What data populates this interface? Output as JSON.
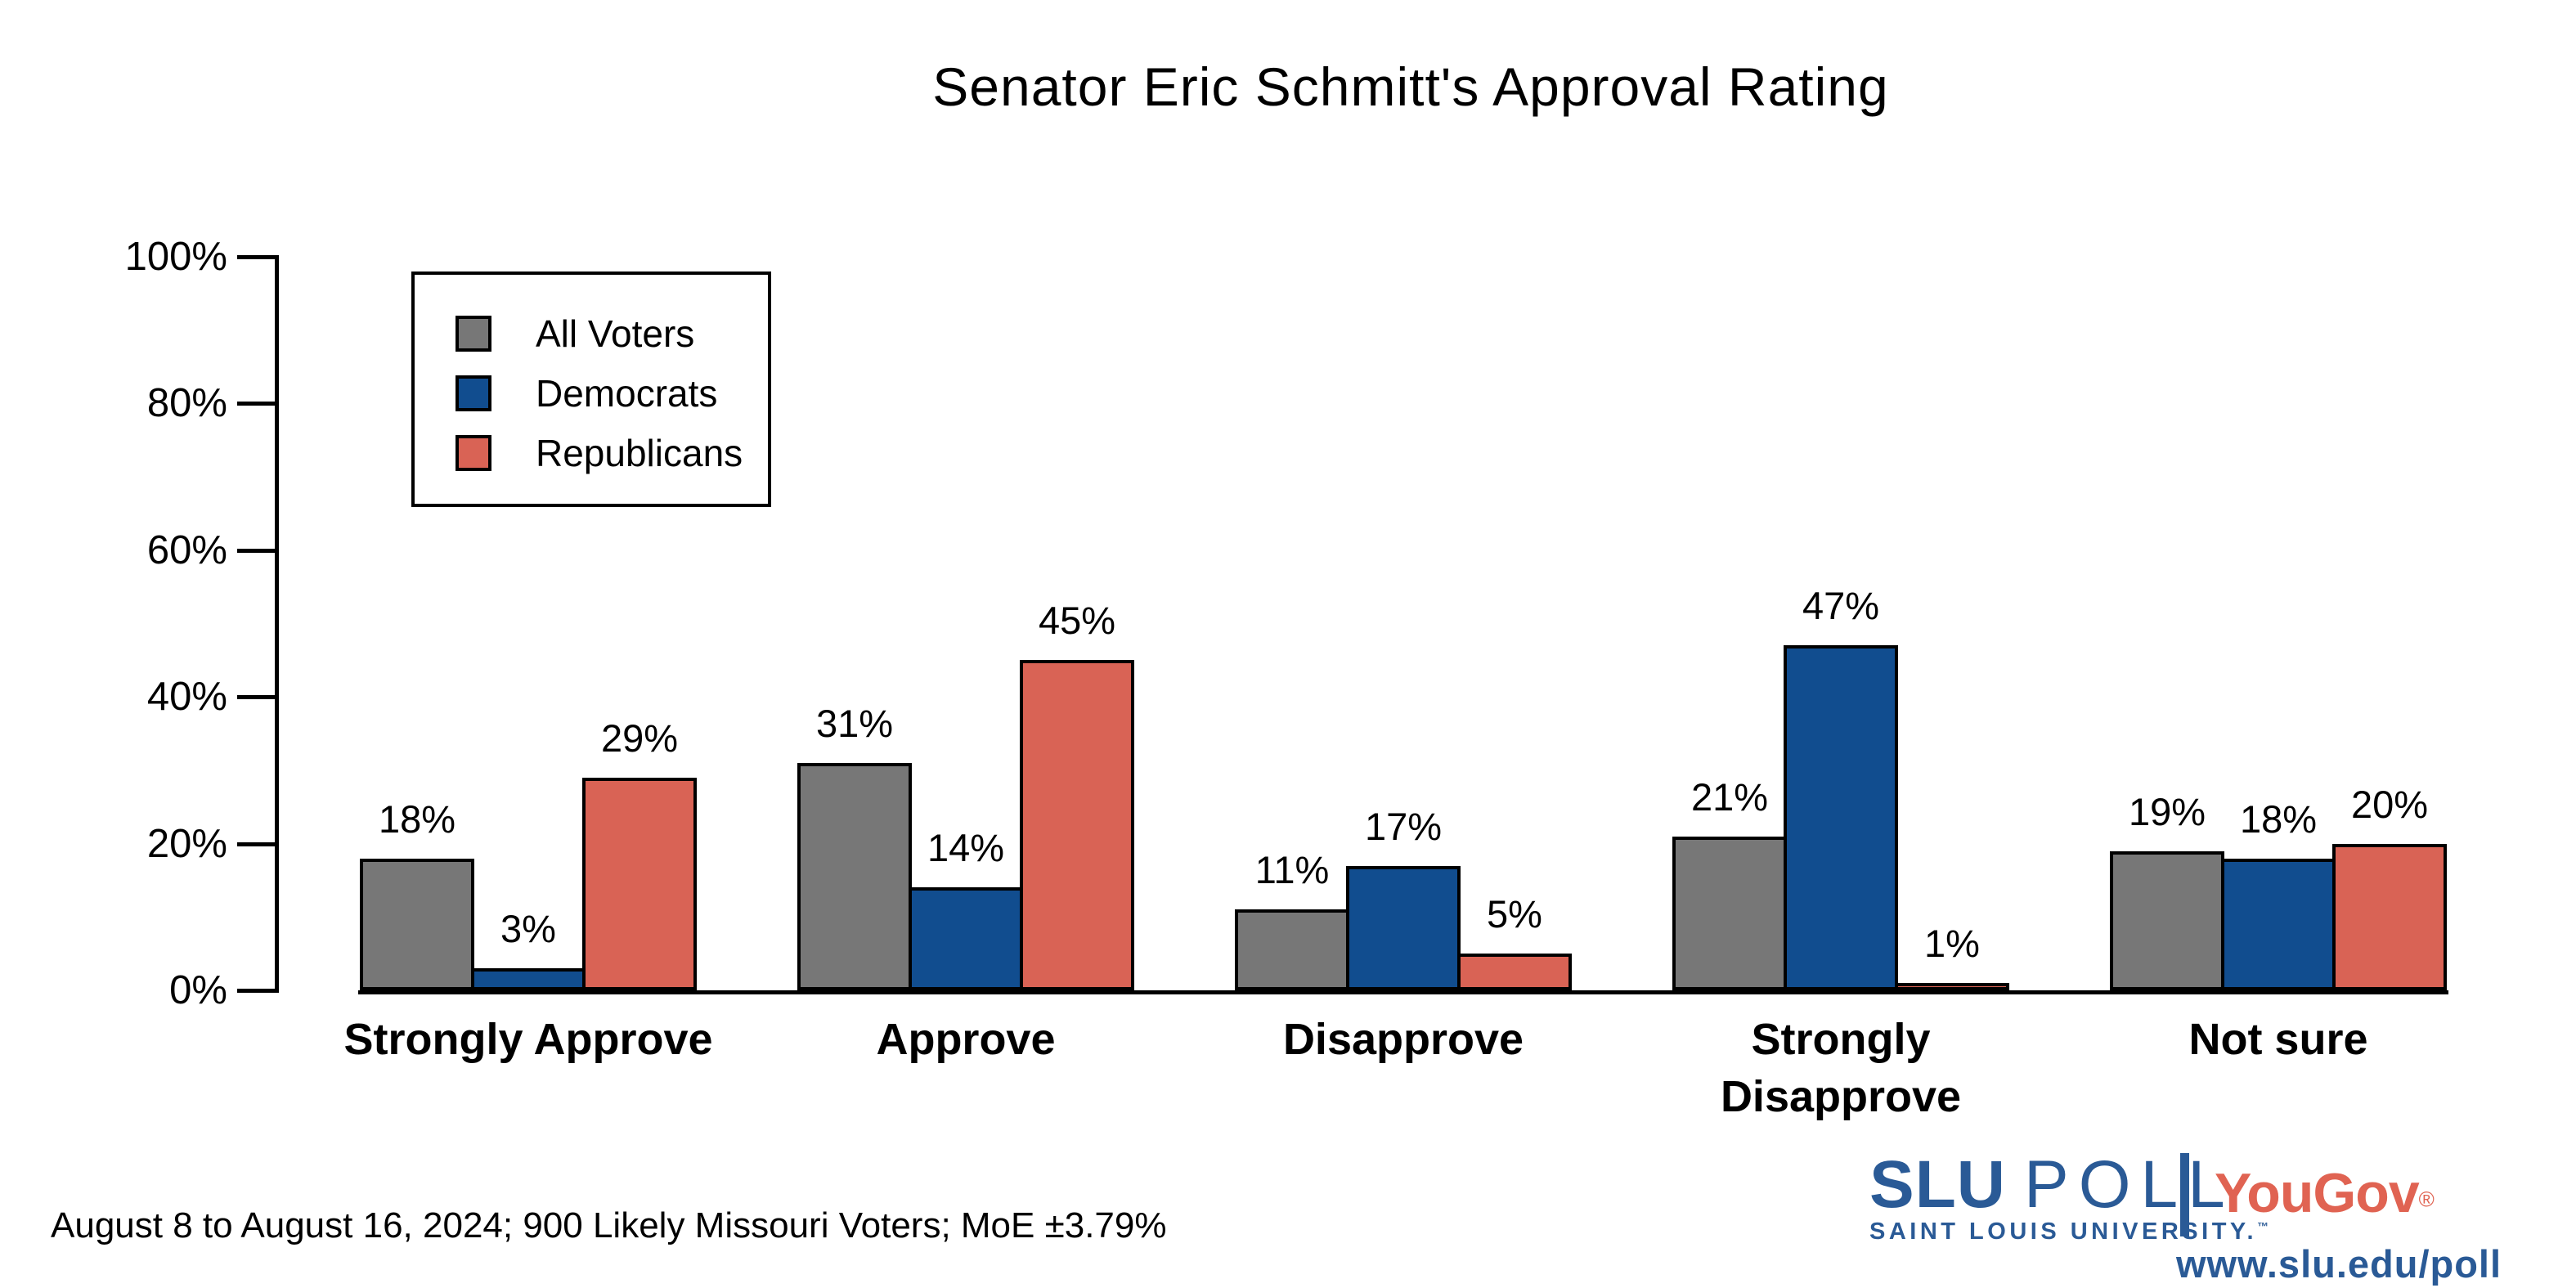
{
  "chart_data": {
    "type": "bar",
    "title": "Senator Eric Schmitt's Approval Rating",
    "categories": [
      "Strongly Approve",
      "Approve",
      "Disapprove",
      "Strongly Disapprove",
      "Not sure"
    ],
    "series": [
      {
        "name": "All Voters",
        "color": "#777777",
        "values": [
          18,
          31,
          11,
          21,
          19
        ]
      },
      {
        "name": "Democrats",
        "color": "#114D8F",
        "values": [
          3,
          14,
          17,
          47,
          18
        ]
      },
      {
        "name": "Republicans",
        "color": "#D96355",
        "values": [
          29,
          45,
          5,
          1,
          20
        ]
      }
    ],
    "value_labels": [
      [
        "18%",
        "31%",
        "11%",
        "21%",
        "19%"
      ],
      [
        "3%",
        "14%",
        "17%",
        "47%",
        "18%"
      ],
      [
        "29%",
        "45%",
        "5%",
        "1%",
        "20%"
      ]
    ],
    "xlabel": "",
    "ylabel": "",
    "ylim": [
      0,
      100
    ],
    "yticks": [
      0,
      20,
      40,
      60,
      80,
      100
    ],
    "ytick_labels": [
      "0%",
      "20%",
      "40%",
      "60%",
      "80%",
      "100%"
    ],
    "grid": false,
    "legend_position": "top-left",
    "bar_edge_color": "#000000"
  },
  "footnote": {
    "text": "August 8 to August 16, 2024; 900 Likely Missouri Voters; MoE ±3.79%"
  },
  "branding": {
    "slu": "SLU",
    "poll": "POLL",
    "university": "SAINT LOUIS UNIVERSITY.",
    "trademark": "™",
    "yougov": "YouGov",
    "registered": "®",
    "url": "www.slu.edu/poll",
    "slu_blue": "#2A5A96",
    "yougov_red": "#E06352"
  }
}
